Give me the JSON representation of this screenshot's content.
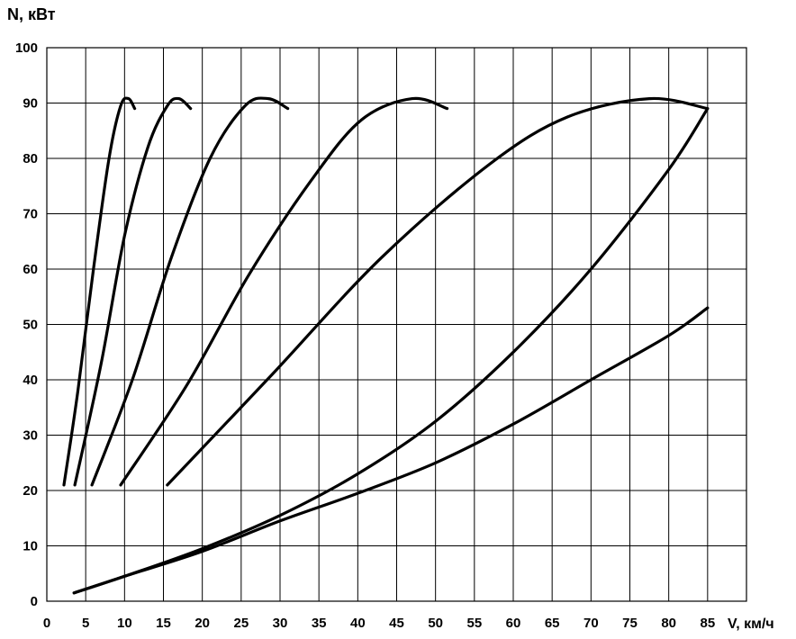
{
  "chart_data": {
    "type": "line",
    "ylabel": "N, кВт",
    "xlabel": "V, км/ч",
    "xlim": [
      0,
      90
    ],
    "ylim": [
      0,
      100
    ],
    "x_ticks": [
      0,
      5,
      10,
      15,
      20,
      25,
      30,
      35,
      40,
      45,
      50,
      55,
      60,
      65,
      70,
      75,
      80,
      85
    ],
    "y_ticks": [
      0,
      10,
      20,
      30,
      40,
      50,
      60,
      70,
      80,
      90,
      100
    ],
    "grid": true,
    "series": [
      {
        "x": [
          2.2,
          4,
          6,
          8,
          9.5,
          10.5,
          11.3
        ],
        "y": [
          21,
          38,
          60,
          80,
          89.5,
          90.8,
          89
        ]
      },
      {
        "x": [
          3.6,
          7,
          10,
          13,
          15.5,
          17,
          18.5
        ],
        "y": [
          21,
          43,
          66,
          82,
          89.5,
          90.8,
          89
        ]
      },
      {
        "x": [
          5.8,
          11,
          16,
          21,
          25.5,
          28.5,
          31
        ],
        "y": [
          21,
          40,
          62,
          80,
          89.5,
          90.8,
          89
        ]
      },
      {
        "x": [
          9.5,
          18,
          26,
          34,
          40.5,
          47,
          51.5
        ],
        "y": [
          21,
          39,
          59,
          76,
          87,
          90.8,
          89
        ]
      },
      {
        "x": [
          15.5,
          29,
          43,
          57,
          67,
          77.5,
          85
        ],
        "y": [
          21,
          41,
          62,
          79,
          87.5,
          90.8,
          89
        ]
      },
      {
        "x": [
          3.5,
          10,
          20,
          30,
          40,
          50,
          60,
          70,
          80,
          85
        ],
        "y": [
          1.5,
          4.5,
          9.5,
          15.5,
          23,
          32.5,
          45,
          60,
          78,
          89
        ]
      },
      {
        "x": [
          3.5,
          10,
          20,
          30,
          40,
          50,
          60,
          70,
          80,
          85
        ],
        "y": [
          1.5,
          4.5,
          9,
          14.5,
          19.5,
          25,
          32,
          40,
          48,
          53
        ]
      }
    ]
  }
}
